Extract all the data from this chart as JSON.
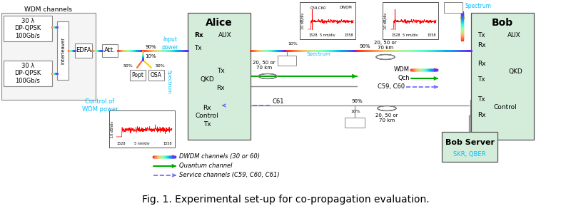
{
  "title": "Fig. 1. Experimental set-up for co-propagation evaluation.",
  "title_fontsize": 10,
  "bg_color": "#ffffff",
  "alice_box_color": "#d4edda",
  "bob_box_color": "#d4edda",
  "bob_server_color": "#d4edda",
  "spectrum_color": "#00bfff",
  "legend_items": [
    {
      "label": "DWDM channels (30 or 60)",
      "style": "solid"
    },
    {
      "label": "Quantum channel",
      "color": "#00aa00",
      "style": "solid"
    },
    {
      "label": "Service channels (C59, C60, C61)",
      "color": "#6666ff",
      "style": "dashed"
    }
  ]
}
